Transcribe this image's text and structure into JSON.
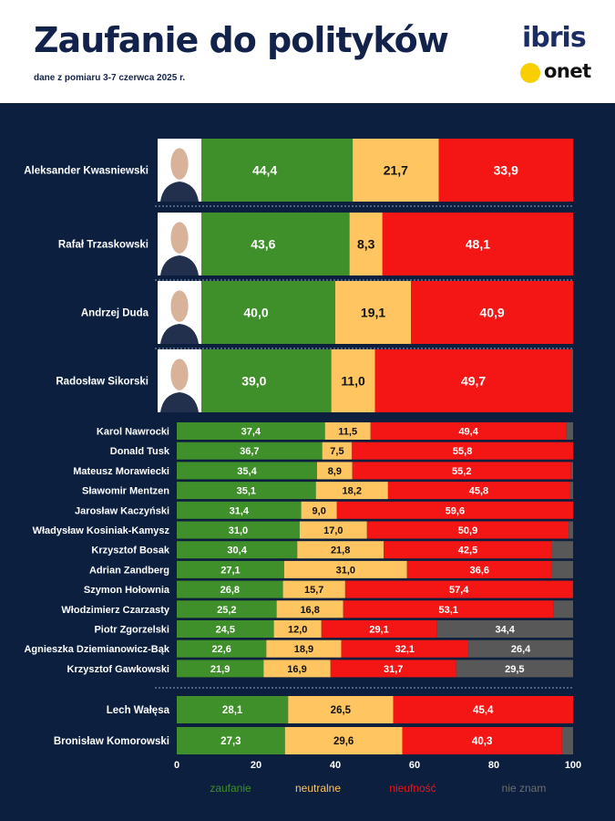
{
  "header": {
    "title": "Zaufanie do polityków",
    "subtitle": "dane z pomiaru 3-7 czerwca 2025 r.",
    "logo_ibris": "ibris",
    "logo_onet": "onet"
  },
  "colors": {
    "zaufanie": "#3f8f2a",
    "neutralne": "#ffc560",
    "nieufnosc": "#f41515",
    "nie_znam": "#585858",
    "background": "#0c1f3f"
  },
  "chart_data": {
    "type": "bar",
    "orientation": "horizontal",
    "stacked": true,
    "title": "Zaufanie do polityków",
    "subtitle": "dane z pomiaru 3-7 czerwca 2025 r.",
    "xlim": [
      0,
      100
    ],
    "xticks": [
      "0",
      "20",
      "40",
      "60",
      "80",
      "100"
    ],
    "legend": [
      "zaufanie",
      "neutralne",
      "nieufność",
      "nie znam"
    ],
    "legend_position": "bottom",
    "groups": [
      {
        "name": "top",
        "rows": [
          {
            "name": "Aleksander Kwasniewski",
            "values": [
              44.4,
              21.7,
              33.9,
              0
            ],
            "labels": [
              "44,4",
              "21,7",
              "33,9",
              ""
            ]
          },
          {
            "name": "Rafał Trzaskowski",
            "values": [
              43.6,
              8.3,
              48.1,
              0
            ],
            "labels": [
              "43,6",
              "8,3",
              "48,1",
              ""
            ]
          },
          {
            "name": "Andrzej Duda",
            "values": [
              40.0,
              19.1,
              40.9,
              0
            ],
            "labels": [
              "40,0",
              "19,1",
              "40,9",
              ""
            ]
          },
          {
            "name": "Radosław Sikorski",
            "values": [
              39.0,
              11.0,
              49.7,
              0.3
            ],
            "labels": [
              "39,0",
              "11,0",
              "49,7",
              ""
            ]
          }
        ]
      },
      {
        "name": "middle",
        "rows": [
          {
            "name": "Karol Nawrocki",
            "values": [
              37.4,
              11.5,
              49.4,
              1.7
            ],
            "labels": [
              "37,4",
              "11,5",
              "49,4",
              ""
            ]
          },
          {
            "name": "Donald Tusk",
            "values": [
              36.7,
              7.5,
              55.8,
              0
            ],
            "labels": [
              "36,7",
              "7,5",
              "55,8",
              ""
            ]
          },
          {
            "name": "Mateusz Morawiecki",
            "values": [
              35.4,
              8.9,
              55.2,
              0.5
            ],
            "labels": [
              "35,4",
              "8,9",
              "55,2",
              ""
            ]
          },
          {
            "name": "Sławomir Mentzen",
            "values": [
              35.1,
              18.2,
              45.8,
              0.9
            ],
            "labels": [
              "35,1",
              "18,2",
              "45,8",
              ""
            ]
          },
          {
            "name": "Jarosław Kaczyński",
            "values": [
              31.4,
              9.0,
              59.6,
              0
            ],
            "labels": [
              "31,4",
              "9,0",
              "59,6",
              ""
            ]
          },
          {
            "name": "Władysław Kosiniak-Kamysz",
            "values": [
              31.0,
              17.0,
              50.9,
              1.1
            ],
            "labels": [
              "31,0",
              "17,0",
              "50,9",
              ""
            ]
          },
          {
            "name": "Krzysztof Bosak",
            "values": [
              30.4,
              21.8,
              42.5,
              5.3
            ],
            "labels": [
              "30,4",
              "21,8",
              "42,5",
              ""
            ]
          },
          {
            "name": "Adrian Zandberg",
            "values": [
              27.1,
              31.0,
              36.6,
              5.3
            ],
            "labels": [
              "27,1",
              "31,0",
              "36,6",
              ""
            ]
          },
          {
            "name": "Szymon Hołownia",
            "values": [
              26.8,
              15.7,
              57.4,
              0.1
            ],
            "labels": [
              "26,8",
              "15,7",
              "57,4",
              ""
            ]
          },
          {
            "name": "Włodzimierz Czarzasty",
            "values": [
              25.2,
              16.8,
              53.1,
              4.9
            ],
            "labels": [
              "25,2",
              "16,8",
              "53,1",
              ""
            ]
          },
          {
            "name": "Piotr Zgorzelski",
            "values": [
              24.5,
              12.0,
              29.1,
              34.4
            ],
            "labels": [
              "24,5",
              "12,0",
              "29,1",
              "34,4"
            ]
          },
          {
            "name": "Agnieszka Dziemianowicz-Bąk",
            "values": [
              22.6,
              18.9,
              32.1,
              26.4
            ],
            "labels": [
              "22,6",
              "18,9",
              "32,1",
              "26,4"
            ]
          },
          {
            "name": "Krzysztof Gawkowski",
            "values": [
              21.9,
              16.9,
              31.7,
              29.5
            ],
            "labels": [
              "21,9",
              "16,9",
              "31,7",
              "29,5"
            ]
          }
        ]
      },
      {
        "name": "bottom",
        "rows": [
          {
            "name": "Lech Wałęsa",
            "values": [
              28.1,
              26.5,
              45.4,
              0
            ],
            "labels": [
              "28,1",
              "26,5",
              "45,4",
              ""
            ]
          },
          {
            "name": "Bronisław Komorowski",
            "values": [
              27.3,
              29.6,
              40.3,
              2.8
            ],
            "labels": [
              "27,3",
              "29,6",
              "40,3",
              ""
            ]
          }
        ]
      }
    ]
  }
}
